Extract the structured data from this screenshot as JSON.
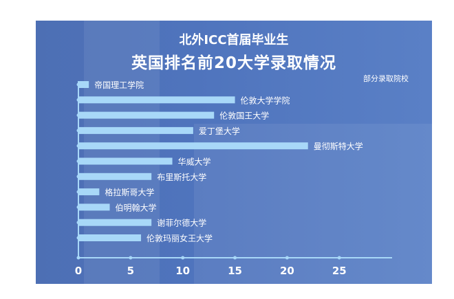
{
  "chart_data": {
    "type": "bar",
    "orientation": "horizontal",
    "title": "北外ICC首届毕业生",
    "subtitle": "英国排名前20大学录取情况",
    "annotation": "部分录取院校",
    "categories": [
      "帝国理工学院",
      "伦敦大学学院",
      "伦敦国王大学",
      "爱丁堡大学",
      "曼彻斯特大学",
      "华威大学",
      "布里斯托大学",
      "格拉斯哥大学",
      "伯明翰大学",
      "谢菲尔德大学",
      "伦敦玛丽女王大学"
    ],
    "values": [
      1,
      15,
      13,
      11,
      22,
      9,
      7,
      2,
      3,
      7,
      6
    ],
    "xlim": [
      0,
      30
    ],
    "xticks": [
      0,
      5,
      10,
      15,
      20,
      25
    ],
    "xlabel": "",
    "ylabel": "",
    "grid": false,
    "colors": {
      "bar": "#a8d8f8",
      "axis": "#a8d8f8",
      "background": "#4f74bd",
      "text": "#ffffff"
    }
  }
}
